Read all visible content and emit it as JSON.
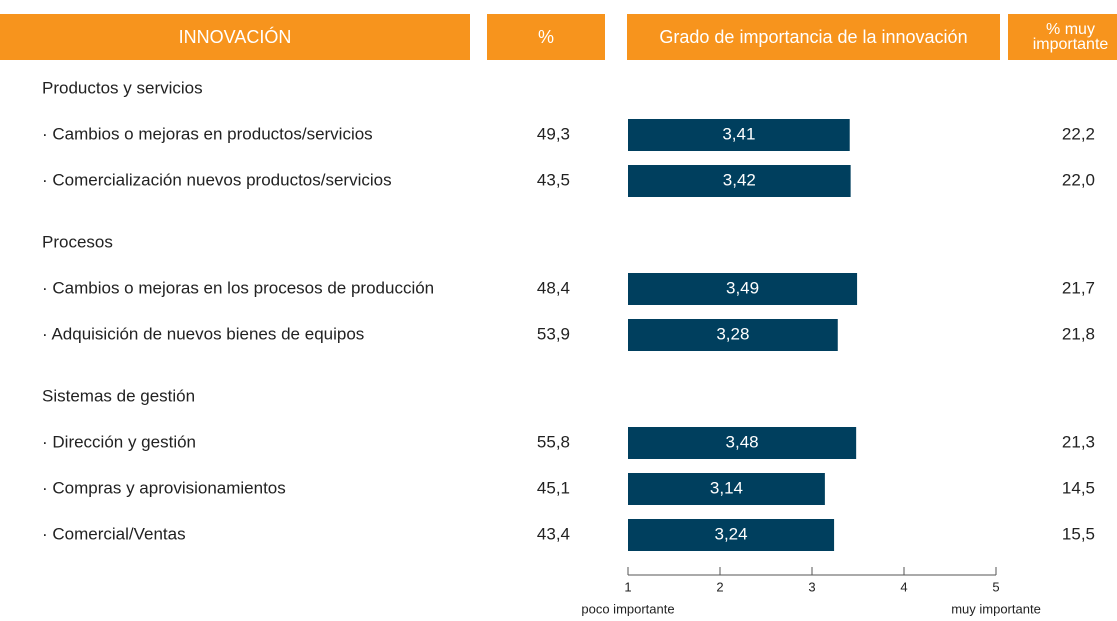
{
  "header": [
    "INNOVACIÓN",
    "%",
    "Grado de importancia de la innovación",
    [
      "% muy",
      "importante"
    ]
  ],
  "groups": [
    {
      "name": "Productos y servicios",
      "rows": [
        {
          "label": "· Cambios o mejoras en productos/servicios",
          "pct": "49,3",
          "grade": 3.41,
          "grade_label": "3,41",
          "muy": "22,2"
        },
        {
          "label": "· Comercialización nuevos productos/servicios",
          "pct": "43,5",
          "grade": 3.42,
          "grade_label": "3,42",
          "muy": "22,0"
        }
      ]
    },
    {
      "name": "Procesos",
      "rows": [
        {
          "label": "· Cambios o mejoras en los procesos de producción",
          "pct": "48,4",
          "grade": 3.49,
          "grade_label": "3,49",
          "muy": "21,7"
        },
        {
          "label": "· Adquisición de nuevos bienes de equipos",
          "pct": "53,9",
          "grade": 3.28,
          "grade_label": "3,28",
          "muy": "21,8"
        }
      ]
    },
    {
      "name": "Sistemas de gestión",
      "rows": [
        {
          "label": "· Dirección y gestión",
          "pct": "55,8",
          "grade": 3.48,
          "grade_label": "3,48",
          "muy": "21,3"
        },
        {
          "label": "· Compras y aprovisionamientos",
          "pct": "45,1",
          "grade": 3.14,
          "grade_label": "3,14",
          "muy": "14,5"
        },
        {
          "label": "· Comercial/Ventas",
          "pct": "43,4",
          "grade": 3.24,
          "grade_label": "3,24",
          "muy": "15,5"
        }
      ]
    }
  ],
  "axis": {
    "xlim": [
      1,
      5
    ],
    "xticks": [
      1,
      2,
      3,
      4,
      5
    ],
    "low_label": "poco importante",
    "high_label": "muy importante"
  },
  "bar_color": "#003f5e",
  "header_color": "#f7941d"
}
